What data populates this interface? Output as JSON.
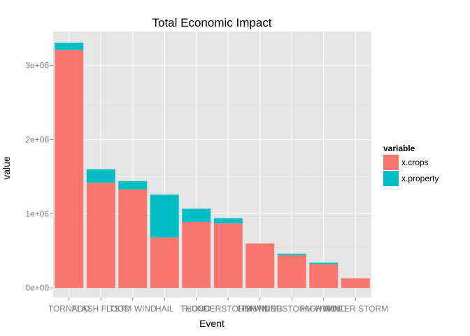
{
  "chart_data": {
    "type": "bar",
    "stacked": true,
    "title": "Total Economic Impact",
    "xlabel": "Event",
    "ylabel": "value",
    "ylim": [
      -130000,
      3460000
    ],
    "yticks": [
      0,
      1000000,
      2000000,
      3000000
    ],
    "ytick_labels": [
      "0e+00",
      "1e+06",
      "2e+06",
      "3e+06"
    ],
    "grid": true,
    "legend_position": "right",
    "legend_title": "variable",
    "categories": [
      "TORNADO",
      "FLASH FLOOD",
      "TSTM WIND",
      "HAIL",
      "FLOOD",
      "THUNDERSTORM WIND",
      "LIGHTNING",
      "THUNDERSTORM WINDS",
      "HIGH WIND",
      "WINTER STORM"
    ],
    "series": [
      {
        "name": "x.crops",
        "color": "#F8766D",
        "values": [
          3210000,
          1420000,
          1330000,
          680000,
          890000,
          870000,
          600000,
          440000,
          320000,
          130000
        ]
      },
      {
        "name": "x.property",
        "color": "#00BFC4",
        "values": [
          100000,
          180000,
          110000,
          580000,
          180000,
          70000,
          0,
          20000,
          20000,
          0
        ]
      }
    ]
  }
}
